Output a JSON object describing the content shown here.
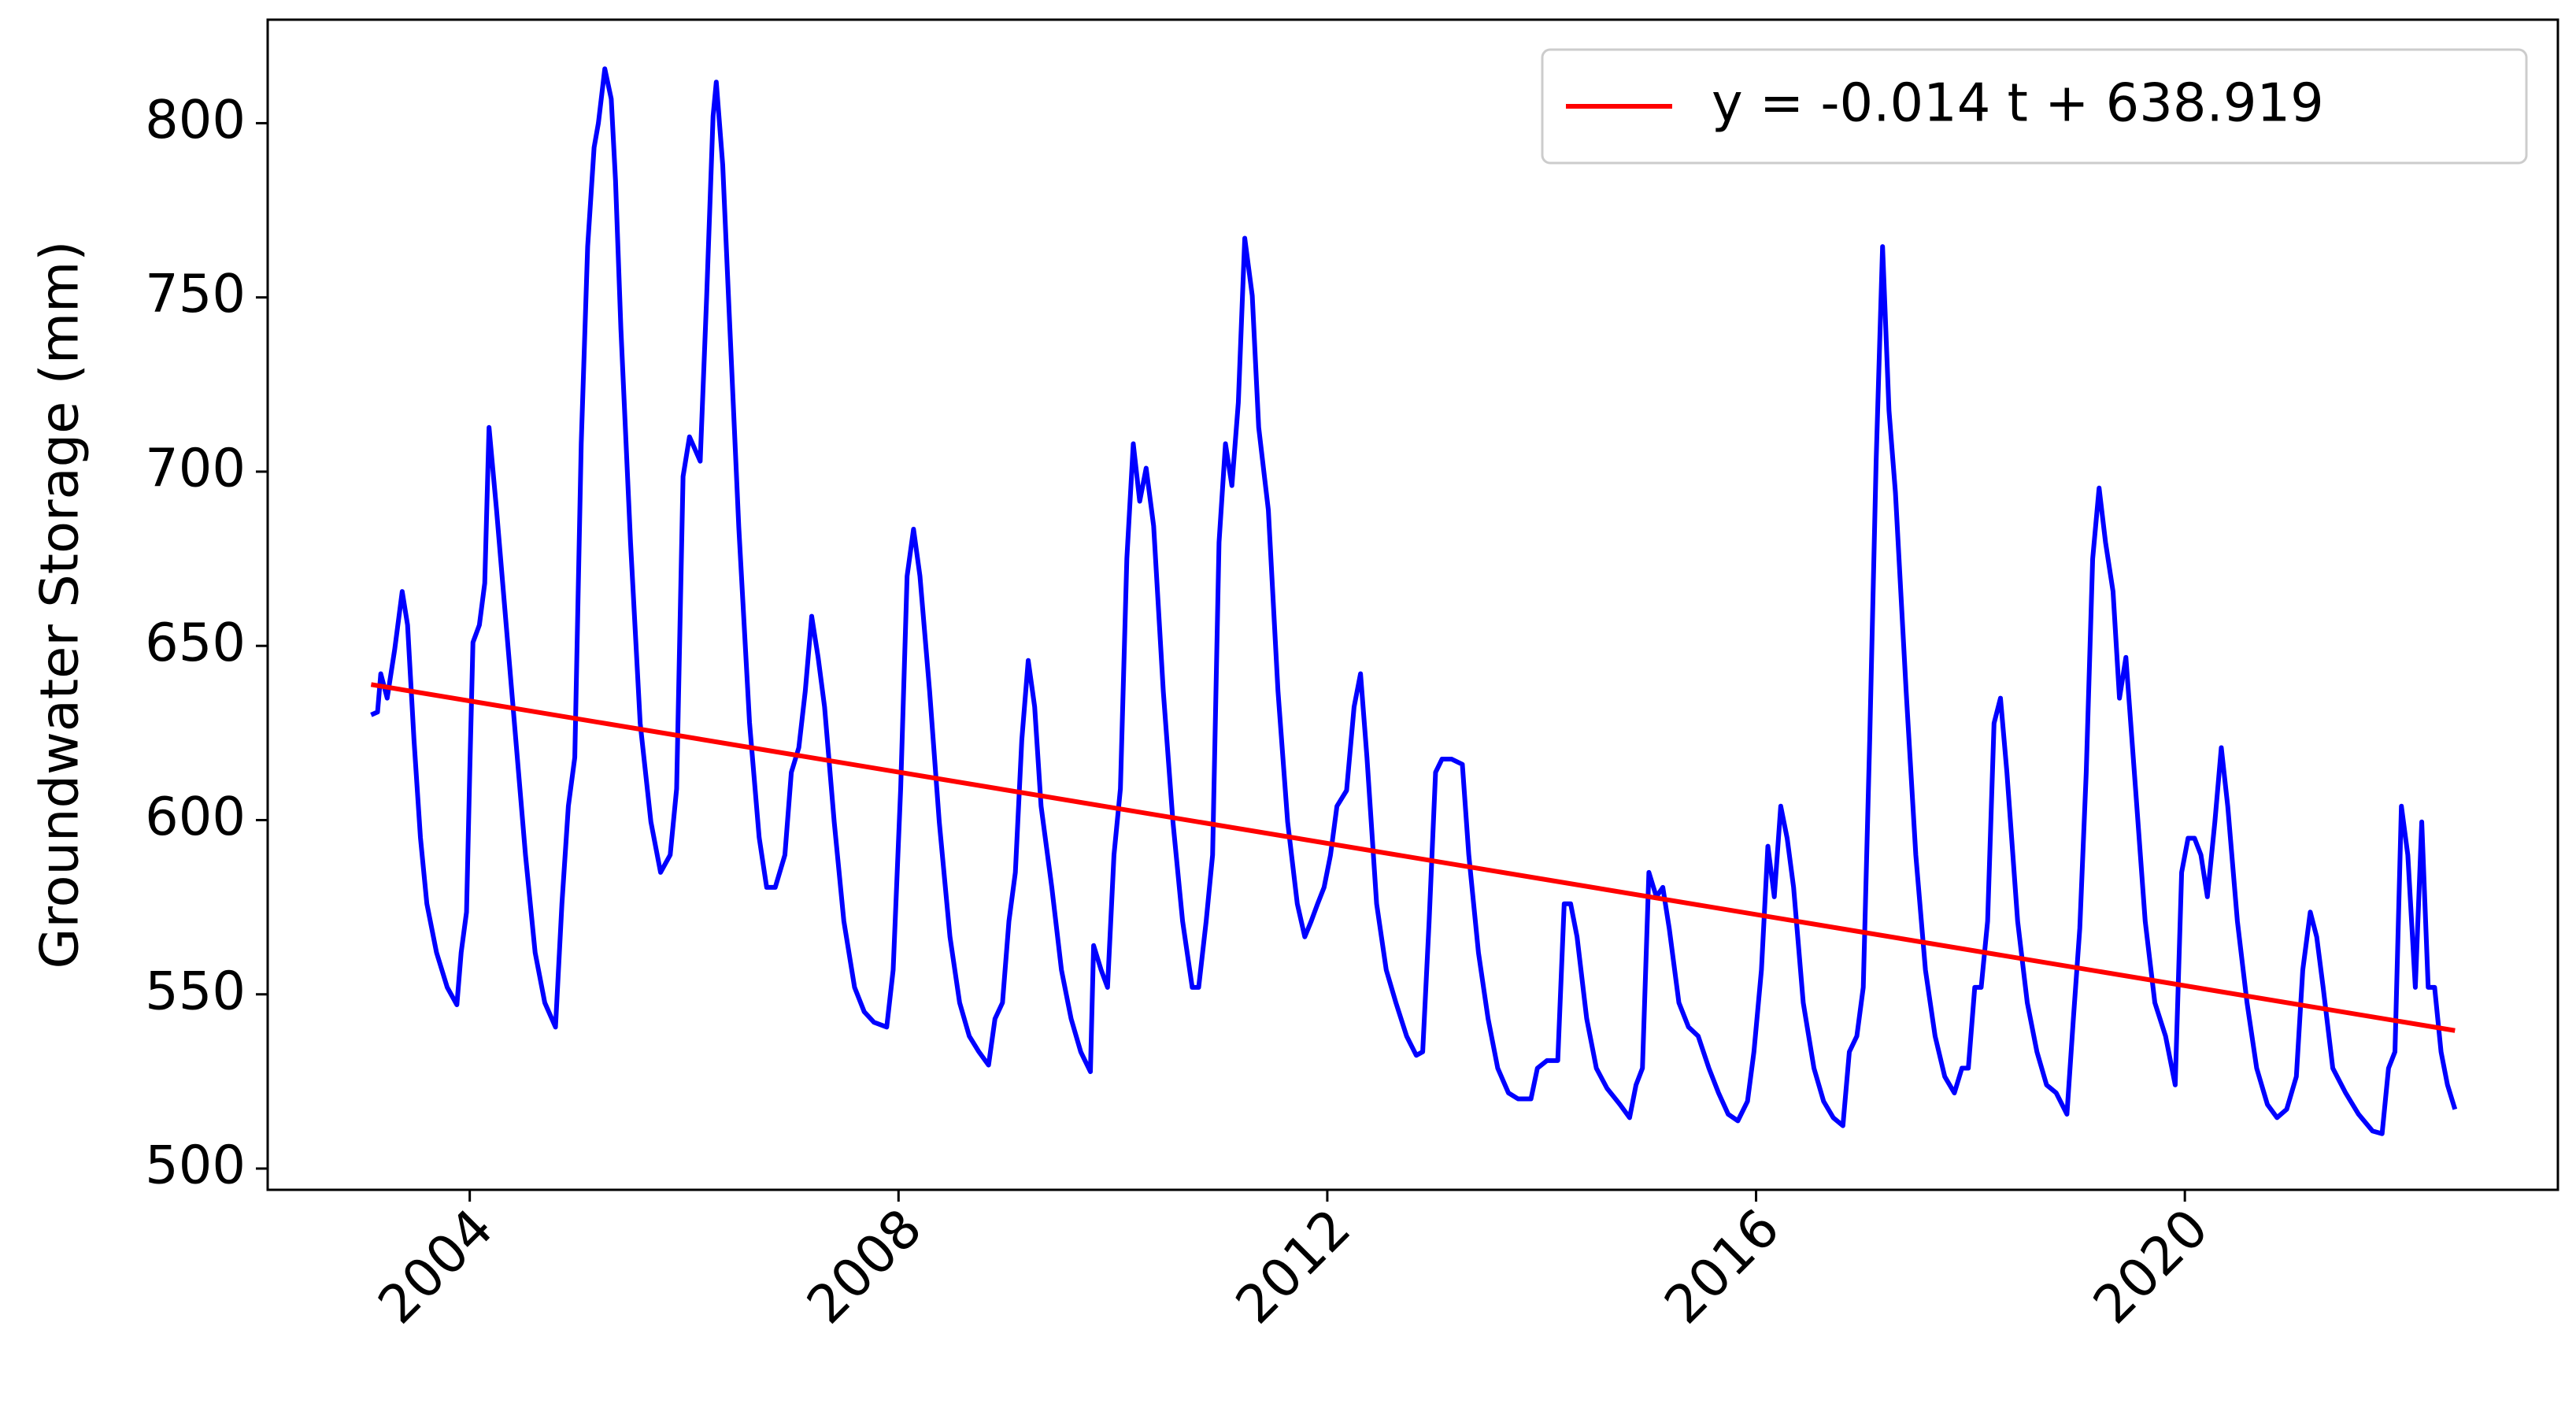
{
  "chart_data": {
    "type": "line",
    "ylabel": "Groundwater Storage (mm)",
    "xlim": [
      2002.115,
      2023.48
    ],
    "ylim": [
      493.9,
      829.7
    ],
    "xticks": [
      2004,
      2008,
      2012,
      2016,
      2020
    ],
    "yticks": [
      500,
      550,
      600,
      650,
      700,
      750,
      800
    ],
    "legend": "upper right",
    "series": [
      {
        "name": null,
        "color": "#0000ff",
        "x": [
          2003.08,
          2003.14,
          2003.17,
          2003.23,
          2003.3,
          2003.37,
          2003.42,
          2003.48,
          2003.54,
          2003.6,
          2003.69,
          2003.79,
          2003.88,
          2003.92,
          2003.97,
          2004.0,
          2004.03,
          2004.09,
          2004.14,
          2004.18,
          2004.25,
          2004.34,
          2004.43,
          2004.52,
          2004.61,
          2004.7,
          2004.8,
          2004.86,
          2004.92,
          2004.98,
          2005.04,
          2005.1,
          2005.16,
          2005.2,
          2005.26,
          2005.32,
          2005.36,
          2005.41,
          2005.5,
          2005.59,
          2005.69,
          2005.78,
          2005.87,
          2005.93,
          2005.99,
          2006.05,
          2006.15,
          2006.21,
          2006.27,
          2006.3,
          2006.36,
          2006.42,
          2006.51,
          2006.61,
          2006.7,
          2006.77,
          2006.85,
          2006.94,
          2007.0,
          2007.07,
          2007.13,
          2007.19,
          2007.25,
          2007.31,
          2007.4,
          2007.49,
          2007.59,
          2007.68,
          2007.77,
          2007.89,
          2007.95,
          2008.02,
          2008.08,
          2008.14,
          2008.2,
          2008.29,
          2008.38,
          2008.48,
          2008.57,
          2008.66,
          2008.75,
          2008.84,
          2008.9,
          2008.97,
          2009.03,
          2009.09,
          2009.15,
          2009.21,
          2009.27,
          2009.33,
          2009.43,
          2009.52,
          2009.61,
          2009.7,
          2009.79,
          2009.82,
          2009.89,
          2009.95,
          2010.01,
          2010.07,
          2010.13,
          2010.19,
          2010.25,
          2010.31,
          2010.38,
          2010.47,
          2010.56,
          2010.65,
          2010.74,
          2010.8,
          2010.87,
          2010.93,
          2010.99,
          2011.05,
          2011.11,
          2011.17,
          2011.23,
          2011.3,
          2011.36,
          2011.45,
          2011.54,
          2011.63,
          2011.72,
          2011.79,
          2011.85,
          2011.91,
          2011.97,
          2012.03,
          2012.09,
          2012.18,
          2012.25,
          2012.31,
          2012.37,
          2012.46,
          2012.55,
          2012.64,
          2012.74,
          2012.83,
          2012.89,
          2012.95,
          2013.01,
          2013.07,
          2013.16,
          2013.26,
          2013.32,
          2013.41,
          2013.5,
          2013.59,
          2013.69,
          2013.78,
          2013.9,
          2013.96,
          2014.05,
          2014.15,
          2014.21,
          2014.27,
          2014.33,
          2014.42,
          2014.51,
          2014.61,
          2014.73,
          2014.82,
          2014.88,
          2014.94,
          2015.0,
          2015.07,
          2015.13,
          2015.19,
          2015.28,
          2015.37,
          2015.46,
          2015.56,
          2015.65,
          2015.74,
          2015.83,
          2015.92,
          2015.98,
          2016.05,
          2016.11,
          2016.17,
          2016.23,
          2016.29,
          2016.35,
          2016.44,
          2016.54,
          2016.63,
          2016.72,
          2016.81,
          2016.87,
          2016.94,
          2017.0,
          2017.06,
          2017.12,
          2017.18,
          2017.24,
          2017.3,
          2017.4,
          2017.49,
          2017.58,
          2017.67,
          2017.76,
          2017.85,
          2017.92,
          2017.98,
          2018.04,
          2018.1,
          2018.16,
          2018.22,
          2018.28,
          2018.34,
          2018.44,
          2018.53,
          2018.62,
          2018.71,
          2018.8,
          2018.9,
          2018.96,
          2019.02,
          2019.08,
          2019.14,
          2019.2,
          2019.26,
          2019.33,
          2019.39,
          2019.45,
          2019.54,
          2019.63,
          2019.72,
          2019.82,
          2019.91,
          2019.97,
          2020.03,
          2020.09,
          2020.15,
          2020.21,
          2020.28,
          2020.34,
          2020.4,
          2020.49,
          2020.58,
          2020.67,
          2020.77,
          2020.86,
          2020.95,
          2021.04,
          2021.1,
          2021.17,
          2021.23,
          2021.29,
          2021.38,
          2021.5,
          2021.62,
          2021.75,
          2021.84,
          2021.9,
          2021.96,
          2022.02,
          2022.08,
          2022.15,
          2022.21,
          2022.27,
          2022.33,
          2022.39,
          2022.45,
          2022.52
        ],
        "values": [
          630.2,
          631,
          642,
          635,
          649,
          665.6,
          656,
          623,
          595,
          576,
          562,
          552,
          547,
          562,
          573.6,
          613.7,
          651,
          656,
          668,
          712.7,
          689,
          656,
          623,
          590,
          562,
          547.6,
          540.6,
          576,
          604,
          618,
          708,
          764.6,
          793,
          800,
          815.6,
          807,
          783.5,
          741,
          679.7,
          627.8,
          599.5,
          585,
          590,
          609,
          698.6,
          710,
          703,
          750,
          802,
          811.8,
          788,
          745.8,
          684,
          628,
          595,
          580.7,
          580.7,
          590,
          613.7,
          620.8,
          637,
          658.5,
          646.7,
          632.5,
          599.5,
          571,
          552,
          545,
          542,
          540.6,
          557,
          609,
          670,
          683.5,
          670,
          637,
          599.5,
          566.5,
          547.6,
          538,
          533.5,
          529.7,
          543,
          547.6,
          571,
          585,
          623,
          645.8,
          632.5,
          604,
          580.7,
          557,
          543,
          533.5,
          527.8,
          564,
          557,
          552,
          590,
          609,
          675,
          708,
          691.5,
          701,
          684.4,
          637,
          599.5,
          571,
          552,
          552,
          571,
          590,
          679.7,
          708,
          696,
          719.8,
          767,
          750.5,
          712.7,
          689,
          637,
          599.5,
          576,
          566.5,
          571,
          576,
          580.7,
          590,
          604,
          608.5,
          632.5,
          642,
          618,
          576,
          557,
          547.6,
          538,
          532.5,
          533.5,
          571,
          613.7,
          617.5,
          617.5,
          616,
          590,
          562,
          543,
          528.8,
          521.7,
          520,
          520,
          528.8,
          531,
          531,
          576,
          576,
          566.5,
          543,
          528.8,
          523,
          518.4,
          514.6,
          524,
          528.8,
          585,
          578,
          580.7,
          568.9,
          547.6,
          540.6,
          538,
          528.8,
          521.7,
          515.6,
          513.7,
          519.3,
          533.5,
          557,
          592.5,
          578,
          604,
          594.8,
          580.7,
          547.6,
          528.8,
          519.3,
          514.6,
          512.3,
          533.5,
          538,
          552,
          623,
          703,
          764.6,
          717.5,
          694,
          637,
          590,
          557,
          538,
          526.4,
          521.7,
          528.8,
          528.8,
          552,
          552,
          571,
          627.8,
          635,
          613.7,
          571,
          547.6,
          533.5,
          524,
          521.7,
          515.6,
          543,
          569,
          613.7,
          675,
          695.3,
          679.7,
          665.6,
          635,
          646.7,
          609,
          571,
          547.6,
          538,
          524,
          585,
          594.8,
          594.8,
          590,
          578,
          599.5,
          620.8,
          604,
          571,
          547.6,
          528.8,
          518.4,
          514.6,
          517,
          526.4,
          557,
          573.6,
          566.5,
          552,
          528.8,
          521.7,
          515.6,
          510.8,
          510,
          528.8,
          533.5,
          604,
          590,
          552,
          599.5,
          552,
          552,
          533.5,
          524,
          517
        ]
      },
      {
        "name": "y = -0.014 t + 638.919",
        "color": "#ff0000",
        "x": [
          2003.08,
          2022.52
        ],
        "values": [
          638.9,
          539.6
        ]
      }
    ]
  }
}
